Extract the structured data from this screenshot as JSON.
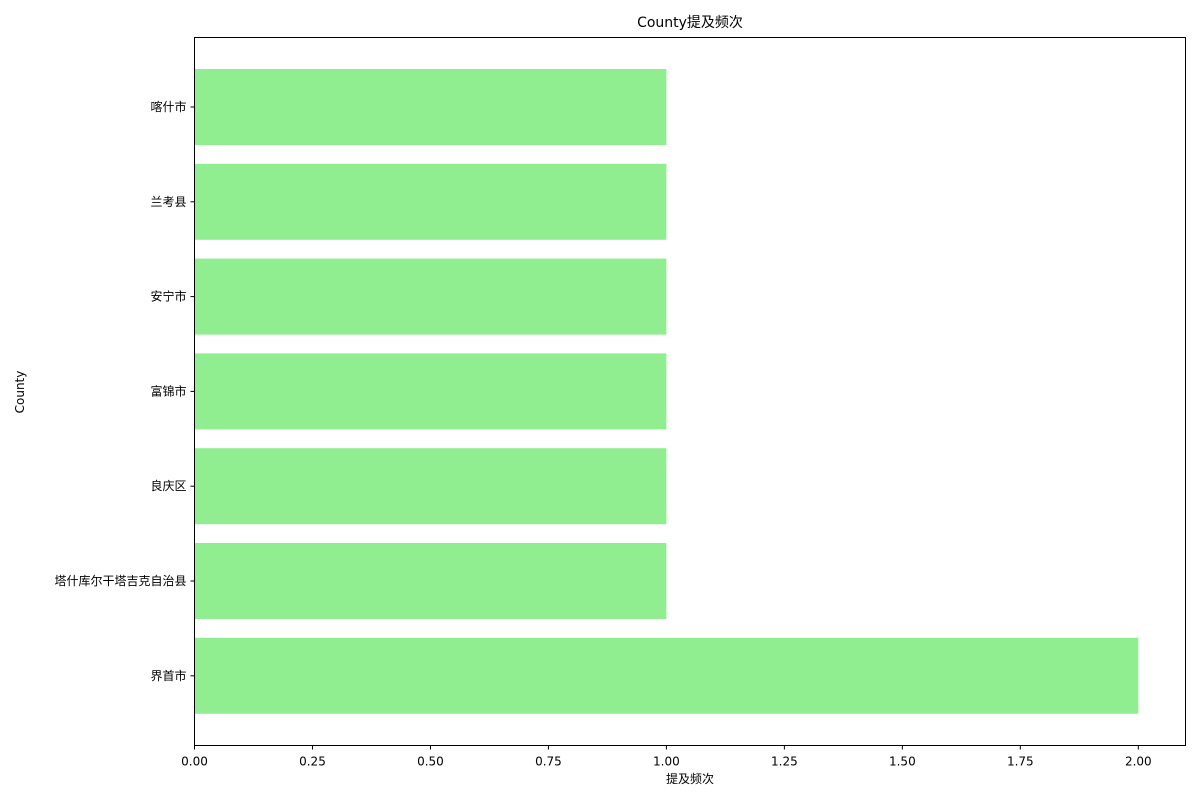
{
  "chart_data": {
    "type": "bar",
    "orientation": "horizontal",
    "title": "County提及频次",
    "xlabel": "提及频次",
    "ylabel": "County",
    "categories": [
      "界首市",
      "塔什库尔干塔吉克自治县",
      "良庆区",
      "富锦市",
      "安宁市",
      "兰考县",
      "喀什市"
    ],
    "values": [
      2,
      1,
      1,
      1,
      1,
      1,
      1
    ],
    "xlim": [
      0,
      2.1
    ],
    "xticks": [
      0.0,
      0.25,
      0.5,
      0.75,
      1.0,
      1.25,
      1.5,
      1.75,
      2.0
    ],
    "xtick_labels": [
      "0.00",
      "0.25",
      "0.50",
      "0.75",
      "1.00",
      "1.25",
      "1.50",
      "1.75",
      "2.00"
    ],
    "bar_color": "#90ee90",
    "grid": false,
    "legend": "none"
  }
}
